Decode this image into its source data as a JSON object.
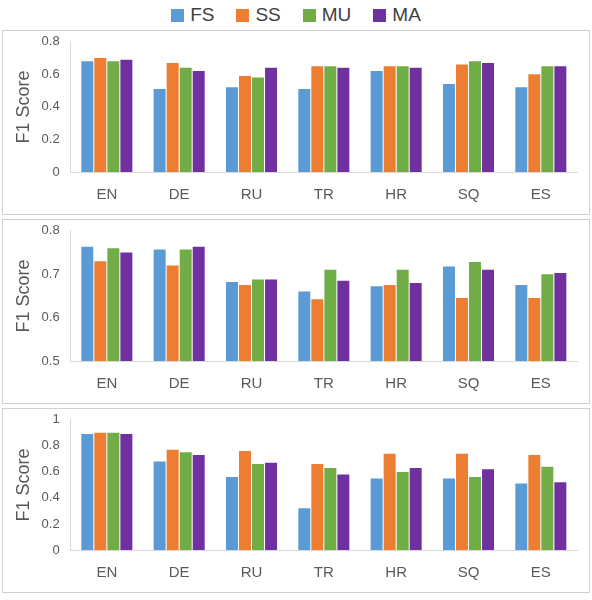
{
  "chart_data": [
    {
      "type": "bar",
      "y_label": "F1 Score",
      "legend": "top",
      "grid": false,
      "categories": [
        "EN",
        "DE",
        "RU",
        "TR",
        "HR",
        "SQ",
        "ES"
      ],
      "ylim": [
        0,
        0.8
      ],
      "yticks": [
        0,
        0.2,
        0.4,
        0.6,
        0.8
      ],
      "series": [
        {
          "name": "FS",
          "color": "#5b9bd5",
          "values": [
            0.68,
            0.51,
            0.52,
            0.51,
            0.62,
            0.54,
            0.52
          ]
        },
        {
          "name": "SS",
          "color": "#ed7d31",
          "values": [
            0.7,
            0.67,
            0.59,
            0.65,
            0.65,
            0.66,
            0.6
          ]
        },
        {
          "name": "MU",
          "color": "#70ad47",
          "values": [
            0.68,
            0.64,
            0.58,
            0.65,
            0.65,
            0.68,
            0.65
          ]
        },
        {
          "name": "MA",
          "color": "#7030a0",
          "values": [
            0.69,
            0.62,
            0.64,
            0.64,
            0.64,
            0.67,
            0.65
          ]
        }
      ]
    },
    {
      "type": "bar",
      "y_label": "F1 Score",
      "grid": false,
      "categories": [
        "EN",
        "DE",
        "RU",
        "TR",
        "HR",
        "SQ",
        "ES"
      ],
      "ylim": [
        0.5,
        0.8
      ],
      "yticks": [
        0.5,
        0.6,
        0.7,
        0.8
      ],
      "series": [
        {
          "name": "FS",
          "color": "#5b9bd5",
          "values": [
            0.763,
            0.757,
            0.682,
            0.66,
            0.672,
            0.718,
            0.675
          ]
        },
        {
          "name": "SS",
          "color": "#ed7d31",
          "values": [
            0.73,
            0.72,
            0.675,
            0.642,
            0.675,
            0.645,
            0.645
          ]
        },
        {
          "name": "MU",
          "color": "#70ad47",
          "values": [
            0.76,
            0.757,
            0.688,
            0.71,
            0.71,
            0.728,
            0.7
          ]
        },
        {
          "name": "MA",
          "color": "#7030a0",
          "values": [
            0.75,
            0.763,
            0.688,
            0.685,
            0.68,
            0.71,
            0.703
          ]
        }
      ]
    },
    {
      "type": "bar",
      "y_label": "F1 Score",
      "grid": false,
      "categories": [
        "EN",
        "DE",
        "RU",
        "TR",
        "HR",
        "SQ",
        "ES"
      ],
      "ylim": [
        0,
        1
      ],
      "yticks": [
        0,
        0.2,
        0.4,
        0.6,
        0.8,
        1
      ],
      "series": [
        {
          "name": "FS",
          "color": "#5b9bd5",
          "values": [
            0.89,
            0.68,
            0.56,
            0.32,
            0.55,
            0.55,
            0.51
          ]
        },
        {
          "name": "SS",
          "color": "#ed7d31",
          "values": [
            0.9,
            0.77,
            0.76,
            0.66,
            0.74,
            0.74,
            0.73
          ]
        },
        {
          "name": "MU",
          "color": "#70ad47",
          "values": [
            0.9,
            0.75,
            0.66,
            0.63,
            0.6,
            0.56,
            0.64
          ]
        },
        {
          "name": "MA",
          "color": "#7030a0",
          "values": [
            0.89,
            0.73,
            0.67,
            0.58,
            0.63,
            0.62,
            0.52
          ]
        }
      ]
    }
  ]
}
